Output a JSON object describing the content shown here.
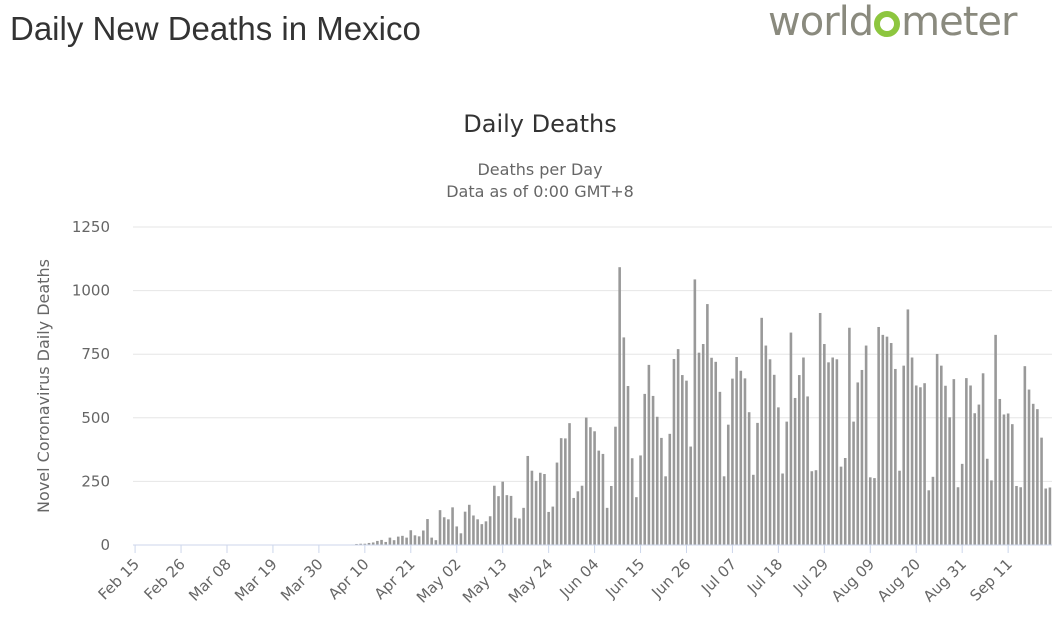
{
  "page": {
    "title": "Daily New Deaths in Mexico",
    "logo_left": "world",
    "logo_right": "meter"
  },
  "chart_data": {
    "type": "bar",
    "title": "Daily Deaths",
    "subtitle_lines": [
      "Deaths per Day",
      "Data as of 0:00 GMT+8"
    ],
    "xlabel": "",
    "ylabel": "Novel Coronavirus Daily Deaths",
    "ylim": [
      0,
      1250
    ],
    "yticks": [
      0,
      250,
      500,
      750,
      1000,
      1250
    ],
    "x_tick_labels": [
      "Feb 15",
      "Feb 26",
      "Mar 08",
      "Mar 19",
      "Mar 30",
      "Apr 10",
      "Apr 21",
      "May 02",
      "May 13",
      "May 24",
      "Jun 04",
      "Jun 15",
      "Jun 26",
      "Jul 07",
      "Jul 18",
      "Jul 29",
      "Aug 09",
      "Aug 20",
      "Aug 31",
      "Sep 11"
    ],
    "x_tick_interval_days": 11,
    "start_date": "Feb 15",
    "grid": true,
    "bar_color": "#999999",
    "series": [
      {
        "name": "Daily Deaths",
        "values": [
          0,
          0,
          0,
          0,
          0,
          0,
          0,
          0,
          0,
          0,
          0,
          0,
          0,
          0,
          0,
          0,
          0,
          0,
          0,
          0,
          0,
          0,
          0,
          0,
          0,
          0,
          0,
          0,
          0,
          0,
          0,
          0,
          0,
          0,
          0,
          0,
          0,
          0,
          0,
          0,
          0,
          0,
          0,
          0,
          0,
          0,
          0,
          0,
          0,
          0,
          0,
          1,
          2,
          4,
          5,
          5,
          8,
          10,
          16,
          20,
          12,
          29,
          19,
          33,
          36,
          29,
          58,
          38,
          34,
          57,
          102,
          29,
          19,
          137,
          109,
          101,
          148,
          73,
          46,
          131,
          158,
          116,
          101,
          82,
          93,
          113,
          233,
          192,
          249,
          196,
          193,
          107,
          104,
          146,
          350,
          292,
          252,
          284,
          279,
          130,
          151,
          324,
          420,
          419,
          479,
          185,
          211,
          233,
          501,
          463,
          447,
          371,
          358,
          146,
          232,
          465,
          1092,
          816,
          625,
          341,
          188,
          352,
          594,
          708,
          586,
          504,
          421,
          270,
          437,
          731,
          770,
          668,
          646,
          387,
          1044,
          756,
          790,
          947,
          736,
          720,
          602,
          270,
          473,
          654,
          739,
          685,
          655,
          522,
          276,
          480,
          893,
          784,
          730,
          669,
          541,
          281,
          485,
          835,
          578,
          668,
          737,
          584,
          290,
          294,
          912,
          790,
          718,
          737,
          730,
          308,
          342,
          854,
          485,
          639,
          688,
          784,
          266,
          263,
          857,
          826,
          819,
          794,
          692,
          292,
          705,
          926,
          737,
          627,
          620,
          636,
          215,
          268,
          751,
          705,
          626,
          502,
          652,
          227,
          319,
          656,
          627,
          518,
          552,
          675,
          339,
          254,
          826,
          574,
          513,
          517,
          475,
          232,
          227,
          703,
          611,
          555,
          534,
          422,
          222,
          226
        ]
      }
    ]
  }
}
